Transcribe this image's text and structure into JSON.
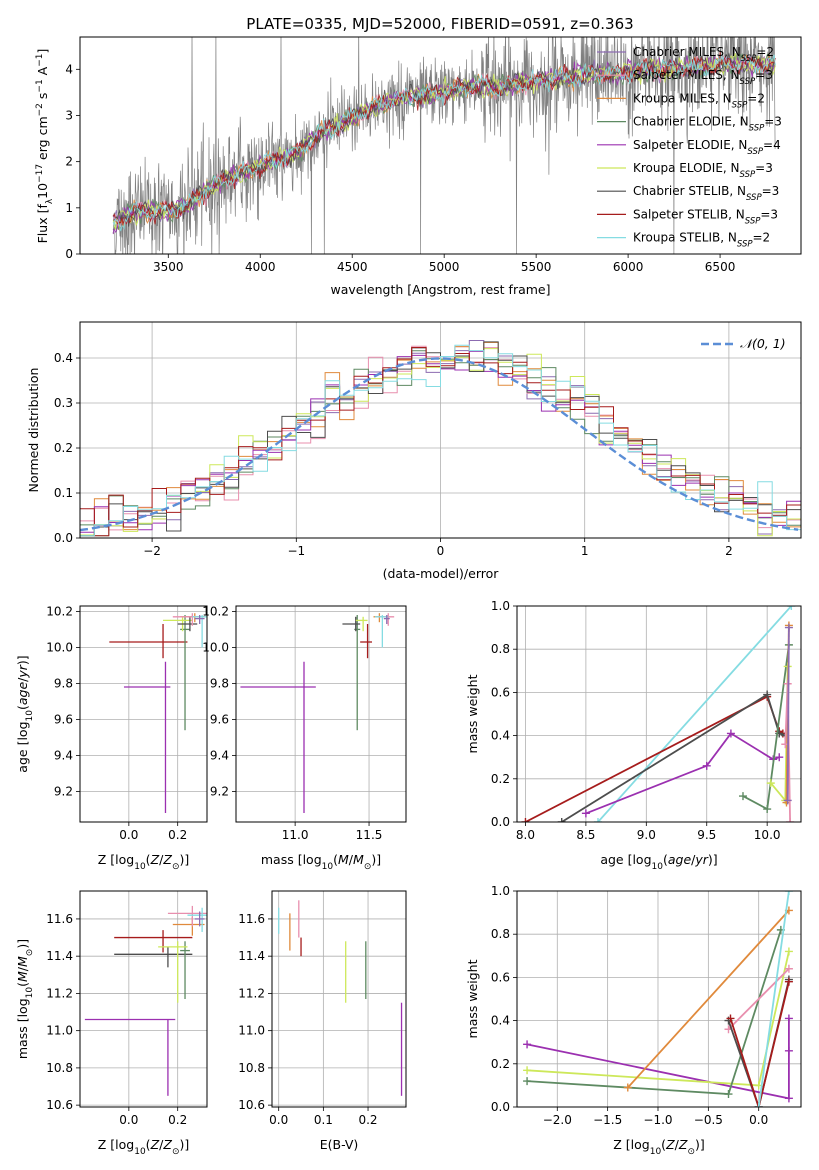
{
  "figure_title": "PLATE=0335, MJD=52000, FIBERID=0591, z=0.363",
  "colors": {
    "Chabrier MILES": "#8c6bb1",
    "Salpeter MILES": "#e88fae",
    "Kroupa MILES": "#e08a3c",
    "Chabrier ELODIE": "#5e8a62",
    "Salpeter ELODIE": "#9b30b0",
    "Kroupa ELODIE": "#cde85a",
    "Chabrier STELIB": "#4d4d4d",
    "Salpeter STELIB": "#a61c1c",
    "Kroupa STELIB": "#85dce2",
    "data": "#808080",
    "normal": "#5b8ed6"
  },
  "chart_data": [
    {
      "type": "line",
      "xlabel": "wavelength [Angstrom, rest frame]",
      "ylabel": "Flux [f_λ 10^-17 erg cm^-2 s^-1 A^-1]",
      "xlim": [
        3020,
        6940
      ],
      "ylim": [
        0,
        4.7
      ],
      "xticks": [
        3500,
        4000,
        4500,
        5000,
        5500,
        6000,
        6500
      ],
      "yticks": [
        0,
        1,
        2,
        3,
        4
      ],
      "grid": false,
      "legend_position": "top-right",
      "legend": [
        {
          "name": "Chabrier MILES",
          "nssp": "2"
        },
        {
          "name": "Salpeter MILES",
          "nssp": "3"
        },
        {
          "name": "Kroupa MILES",
          "nssp": "2"
        },
        {
          "name": "Chabrier ELODIE",
          "nssp": "3"
        },
        {
          "name": "Salpeter ELODIE",
          "nssp": "4"
        },
        {
          "name": "Kroupa ELODIE",
          "nssp": "3"
        },
        {
          "name": "Chabrier STELIB",
          "nssp": "3"
        },
        {
          "name": "Salpeter STELIB",
          "nssp": "3"
        },
        {
          "name": "Kroupa STELIB",
          "nssp": "2"
        }
      ],
      "model_x": [
        3200,
        3300,
        3400,
        3500,
        3600,
        3700,
        3800,
        3900,
        4000,
        4100,
        4200,
        4300,
        4400,
        4500,
        4600,
        4700,
        4800,
        4900,
        5000,
        5100,
        5200,
        5300,
        5400,
        5500,
        5600,
        5700,
        5800,
        5900,
        6000,
        6100,
        6200,
        6300,
        6400,
        6500,
        6600,
        6700,
        6800
      ],
      "model_y": [
        0.65,
        0.9,
        0.95,
        0.9,
        1.05,
        1.35,
        1.6,
        1.75,
        1.9,
        2.05,
        2.2,
        2.55,
        2.75,
        2.95,
        3.15,
        3.3,
        3.4,
        3.45,
        3.5,
        3.6,
        3.65,
        3.6,
        3.7,
        3.75,
        3.8,
        3.85,
        3.9,
        3.9,
        3.95,
        4.0,
        4.0,
        4.05,
        4.05,
        4.1,
        4.1,
        4.1,
        4.1
      ],
      "data_xrange": [
        3200,
        6800
      ]
    },
    {
      "type": "histogram",
      "xlabel": "(data-model)/error",
      "ylabel": "Normed distribution",
      "xlim": [
        -2.5,
        2.5
      ],
      "ylim": [
        0,
        0.48
      ],
      "xticks": [
        -2,
        -1,
        0,
        1,
        2
      ],
      "yticks": [
        0.0,
        0.1,
        0.2,
        0.3,
        0.4
      ],
      "grid": true,
      "legend_position": "top-right",
      "legend": [
        {
          "name": "𝒩(0, 1)"
        }
      ],
      "normal_curve": {
        "mean": 0,
        "std": 1
      }
    },
    {
      "type": "errorbar",
      "xlabel": "Z [log10(Z/Z☉)]",
      "ylabel": "age  [log10(age/yr)]",
      "xlim": [
        -0.2,
        0.32
      ],
      "ylim": [
        9.03,
        10.23
      ],
      "xticks": [
        0.0,
        0.2
      ],
      "yticks": [
        9.2,
        9.4,
        9.6,
        9.8,
        10.0,
        10.2
      ],
      "grid": true,
      "points": [
        {
          "model": "Salpeter ELODIE",
          "x": 0.15,
          "xerr": [
            0.17,
            0.02
          ],
          "y": 9.78,
          "yerr": [
            0.7,
            0.14
          ]
        },
        {
          "model": "Salpeter STELIB",
          "x": 0.14,
          "xerr": [
            0.22,
            0.1
          ],
          "y": 10.03,
          "yerr": [
            0.09,
            0.1
          ]
        },
        {
          "model": "Chabrier ELODIE",
          "x": 0.23,
          "xerr": [
            0.02,
            0.02
          ],
          "y": 10.1,
          "yerr": [
            0.56,
            0.08
          ]
        },
        {
          "model": "Kroupa ELODIE",
          "x": 0.22,
          "xerr": [
            0.08,
            0.04
          ],
          "y": 10.15,
          "yerr": [
            0.06,
            0.02
          ]
        },
        {
          "model": "Chabrier STELIB",
          "x": 0.25,
          "xerr": [
            0.05,
            0.03
          ],
          "y": 10.13,
          "yerr": [
            0.04,
            0.04
          ]
        },
        {
          "model": "Kroupa MILES",
          "x": 0.27,
          "xerr": [
            0.06,
            0.04
          ],
          "y": 10.17,
          "yerr": [
            0.03,
            0.02
          ]
        },
        {
          "model": "Salpeter MILES",
          "x": 0.26,
          "xerr": [
            0.08,
            0.04
          ],
          "y": 10.17,
          "yerr": [
            0.05,
            0.02
          ]
        },
        {
          "model": "Kroupa STELIB",
          "x": 0.3,
          "xerr": [
            0.04,
            0.02
          ],
          "y": 10.17,
          "yerr": [
            0.17,
            0.01
          ]
        },
        {
          "model": "Chabrier MILES",
          "x": 0.29,
          "xerr": [
            0.02,
            0.02
          ],
          "y": 10.16,
          "yerr": [
            0.03,
            0.02
          ]
        }
      ]
    },
    {
      "type": "errorbar",
      "xlabel": "mass [log10(M/M☉)]",
      "ylabel": "",
      "xlim": [
        10.6,
        11.75
      ],
      "ylim": [
        9.03,
        10.23
      ],
      "xticks": [
        11.0,
        11.5
      ],
      "yticks": [
        9.2,
        9.4,
        9.6,
        9.8,
        10.0,
        10.2
      ],
      "grid": true,
      "points": [
        {
          "model": "Salpeter ELODIE",
          "x": 11.06,
          "xerr": [
            0.43,
            0.08
          ],
          "y": 9.78,
          "yerr": [
            0.7,
            0.14
          ]
        },
        {
          "model": "Chabrier ELODIE",
          "x": 11.42,
          "xerr": [
            0.02,
            0.02
          ],
          "y": 10.1,
          "yerr": [
            0.56,
            0.08
          ]
        },
        {
          "model": "Chabrier STELIB",
          "x": 11.41,
          "xerr": [
            0.09,
            0.03
          ],
          "y": 10.13,
          "yerr": [
            0.04,
            0.04
          ]
        },
        {
          "model": "Salpeter STELIB",
          "x": 11.49,
          "xerr": [
            0.05,
            0.03
          ],
          "y": 10.03,
          "yerr": [
            0.09,
            0.1
          ]
        },
        {
          "model": "Kroupa ELODIE",
          "x": 11.46,
          "xerr": [
            0.05,
            0.03
          ],
          "y": 10.15,
          "yerr": [
            0.06,
            0.02
          ]
        },
        {
          "model": "Kroupa MILES",
          "x": 11.57,
          "xerr": [
            0.04,
            0.04
          ],
          "y": 10.17,
          "yerr": [
            0.03,
            0.02
          ]
        },
        {
          "model": "Salpeter MILES",
          "x": 11.63,
          "xerr": [
            0.07,
            0.04
          ],
          "y": 10.17,
          "yerr": [
            0.05,
            0.02
          ]
        },
        {
          "model": "Kroupa STELIB",
          "x": 11.59,
          "xerr": [
            0.05,
            0.04
          ],
          "y": 10.17,
          "yerr": [
            0.17,
            0.01
          ]
        },
        {
          "model": "Chabrier MILES",
          "x": 11.62,
          "xerr": [
            0.02,
            0.02
          ],
          "y": 10.16,
          "yerr": [
            0.03,
            0.02
          ]
        }
      ]
    },
    {
      "type": "line",
      "xlabel": "age  [log10(age/yr)]",
      "ylabel": "mass weight",
      "xlim": [
        7.93,
        10.28
      ],
      "ylim": [
        0,
        1
      ],
      "xticks": [
        8.0,
        8.5,
        9.0,
        9.5,
        10.0
      ],
      "yticks": [
        0.0,
        0.2,
        0.4,
        0.6,
        0.8,
        1.0
      ],
      "grid": true,
      "series": [
        {
          "model": "Kroupa STELIB",
          "x": [
            8.6,
            10.2
          ],
          "y": [
            0.0,
            1.0
          ]
        },
        {
          "model": "Salpeter STELIB",
          "x": [
            8.0,
            10.0,
            10.1,
            10.13
          ],
          "y": [
            0.0,
            0.58,
            0.42,
            0.41
          ]
        },
        {
          "model": "Chabrier STELIB",
          "x": [
            8.3,
            10.0,
            10.1,
            10.15
          ],
          "y": [
            0.0,
            0.59,
            0.41,
            0.4
          ]
        },
        {
          "model": "Salpeter ELODIE",
          "x": [
            8.5,
            9.5,
            9.7,
            10.05,
            10.1
          ],
          "y": [
            0.04,
            0.26,
            0.41,
            0.29,
            0.3
          ]
        },
        {
          "model": "Chabrier ELODIE",
          "x": [
            9.8,
            10.0,
            10.18
          ],
          "y": [
            0.12,
            0.06,
            0.82
          ]
        },
        {
          "model": "Kroupa ELODIE",
          "x": [
            10.03,
            10.15,
            10.17
          ],
          "y": [
            0.18,
            0.1,
            0.72
          ]
        },
        {
          "model": "Kroupa MILES",
          "x": [
            10.16,
            10.18
          ],
          "y": [
            0.09,
            0.91
          ]
        },
        {
          "model": "Salpeter MILES",
          "x": [
            10.15,
            10.17,
            10.19
          ],
          "y": [
            0.36,
            0.64,
            0.0
          ]
        },
        {
          "model": "Chabrier MILES",
          "x": [
            10.17,
            10.18
          ],
          "y": [
            0.1,
            0.9
          ]
        }
      ]
    },
    {
      "type": "errorbar",
      "xlabel": "Z [log10(Z/Z☉)]",
      "ylabel": "mass [log10(M/M☉)]",
      "xlim": [
        -0.2,
        0.32
      ],
      "ylim": [
        10.59,
        11.75
      ],
      "xticks": [
        0.0,
        0.2
      ],
      "yticks": [
        10.6,
        10.8,
        11.0,
        11.2,
        11.4,
        11.6
      ],
      "grid": true,
      "points": [
        {
          "model": "Salpeter ELODIE",
          "x": 0.16,
          "xerr": [
            0.34,
            0.03
          ],
          "y": 11.06,
          "yerr": [
            0.41,
            0.0
          ]
        },
        {
          "model": "Chabrier STELIB",
          "x": 0.16,
          "xerr": [
            0.22,
            0.1
          ],
          "y": 11.41,
          "yerr": [
            0.07,
            0.04
          ]
        },
        {
          "model": "Salpeter STELIB",
          "x": 0.14,
          "xerr": [
            0.2,
            0.12
          ],
          "y": 11.5,
          "yerr": [
            0.08,
            0.04
          ]
        },
        {
          "model": "Chabrier ELODIE",
          "x": 0.23,
          "xerr": [
            0.02,
            0.02
          ],
          "y": 11.43,
          "yerr": [
            0.26,
            0.05
          ]
        },
        {
          "model": "Kroupa ELODIE",
          "x": 0.2,
          "xerr": [
            0.08,
            0.04
          ],
          "y": 11.45,
          "yerr": [
            0.3,
            0.03
          ]
        },
        {
          "model": "Kroupa MILES",
          "x": 0.26,
          "xerr": [
            0.08,
            0.05
          ],
          "y": 11.57,
          "yerr": [
            0.06,
            0.04
          ]
        },
        {
          "model": "Salpeter MILES",
          "x": 0.26,
          "xerr": [
            0.1,
            0.06
          ],
          "y": 11.63,
          "yerr": [
            0.07,
            0.04
          ]
        },
        {
          "model": "Kroupa STELIB",
          "x": 0.3,
          "xerr": [
            0.06,
            0.02
          ],
          "y": 11.62,
          "yerr": [
            0.09,
            0.04
          ]
        },
        {
          "model": "Chabrier MILES",
          "x": 0.29,
          "xerr": [
            0.02,
            0.02
          ],
          "y": 11.6,
          "yerr": [
            0.04,
            0.04
          ]
        }
      ]
    },
    {
      "type": "errorbar",
      "xlabel": "E(B-V)",
      "ylabel": "",
      "xlim": [
        -0.015,
        0.285
      ],
      "ylim": [
        10.59,
        11.75
      ],
      "xticks": [
        0.0,
        0.1,
        0.2
      ],
      "yticks": [
        10.6,
        10.8,
        11.0,
        11.2,
        11.4,
        11.6
      ],
      "grid": true,
      "points": [
        {
          "model": "Kroupa STELIB",
          "x": 0.0,
          "y": 11.62,
          "yerr": [
            0.1,
            0.04
          ]
        },
        {
          "model": "Kroupa MILES",
          "x": 0.025,
          "y": 11.53,
          "yerr": [
            0.1,
            0.1
          ]
        },
        {
          "model": "Salpeter MILES",
          "x": 0.045,
          "y": 11.6,
          "yerr": [
            0.1,
            0.1
          ]
        },
        {
          "model": "Salpeter STELIB",
          "x": 0.05,
          "y": 11.45,
          "yerr": [
            0.05,
            0.05
          ]
        },
        {
          "model": "Kroupa ELODIE",
          "x": 0.15,
          "y": 11.32,
          "yerr": [
            0.17,
            0.16
          ]
        },
        {
          "model": "Chabrier ELODIE",
          "x": 0.195,
          "y": 11.33,
          "yerr": [
            0.16,
            0.15
          ]
        },
        {
          "model": "Salpeter ELODIE",
          "x": 0.275,
          "y": 10.9,
          "yerr": [
            0.25,
            0.25
          ]
        }
      ]
    },
    {
      "type": "line",
      "xlabel": "Z [log10(Z/Z☉)]",
      "ylabel": "mass weight",
      "xlim": [
        -2.4,
        0.42
      ],
      "ylim": [
        0,
        1
      ],
      "xticks": [
        -2.0,
        -1.5,
        -1.0,
        -0.5,
        0.0
      ],
      "yticks": [
        0.0,
        0.2,
        0.4,
        0.6,
        0.8,
        1.0
      ],
      "grid": true,
      "series": [
        {
          "model": "Salpeter ELODIE",
          "x": [
            -2.3,
            0.3,
            0.3,
            0.3
          ],
          "y": [
            0.29,
            0.04,
            0.26,
            0.41
          ]
        },
        {
          "model": "Kroupa ELODIE",
          "x": [
            -2.3,
            0.0,
            0.3
          ],
          "y": [
            0.17,
            0.1,
            0.72
          ]
        },
        {
          "model": "Chabrier ELODIE",
          "x": [
            -2.3,
            -0.3,
            0.22
          ],
          "y": [
            0.12,
            0.06,
            0.82
          ]
        },
        {
          "model": "Kroupa MILES",
          "x": [
            -1.3,
            0.3
          ],
          "y": [
            0.09,
            0.91
          ]
        },
        {
          "model": "Salpeter MILES",
          "x": [
            -0.3,
            0.3
          ],
          "y": [
            0.36,
            0.64
          ]
        },
        {
          "model": "Chabrier STELIB",
          "x": [
            -0.3,
            0.0,
            0.3
          ],
          "y": [
            0.4,
            0.0,
            0.59
          ]
        },
        {
          "model": "Salpeter STELIB",
          "x": [
            -0.28,
            0.0,
            0.3
          ],
          "y": [
            0.41,
            0.0,
            0.58
          ]
        },
        {
          "model": "Kroupa STELIB",
          "x": [
            0.0,
            0.3
          ],
          "y": [
            0.0,
            1.0
          ]
        }
      ]
    }
  ]
}
